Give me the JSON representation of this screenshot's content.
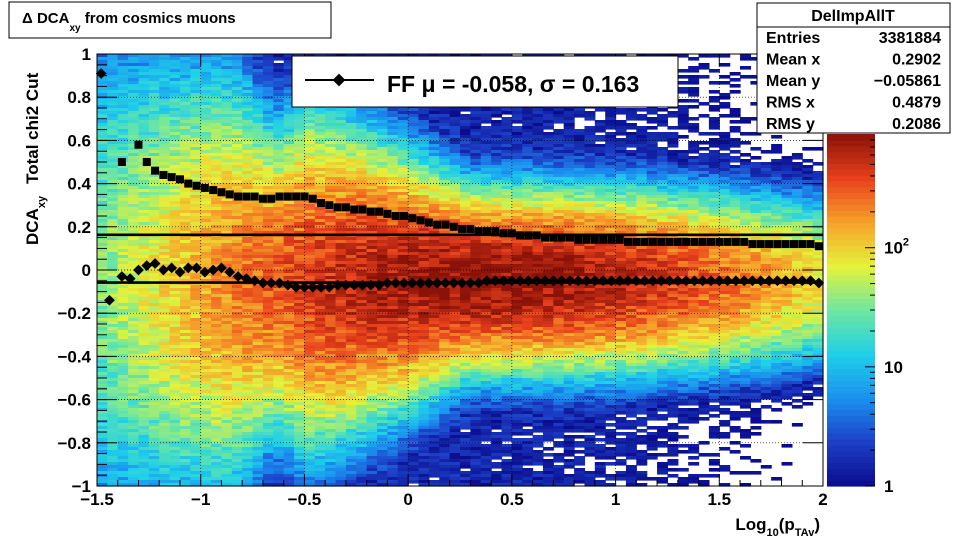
{
  "title": {
    "prefix": "Δ DCA",
    "sub": "xy",
    "suffix": " from cosmics muons"
  },
  "stats": {
    "name": "DelImpAllT",
    "rows": [
      {
        "label": "Entries",
        "value": "3381884"
      },
      {
        "label": "Mean x",
        "value": "0.2902"
      },
      {
        "label": "Mean y",
        "value": "−0.05861"
      },
      {
        "label": "RMS x",
        "value": "0.4879"
      },
      {
        "label": "RMS y",
        "value": "0.2086"
      }
    ]
  },
  "legend": {
    "text": "FF μ = -0.058, σ =   0.163"
  },
  "colors": {
    "frame": "#000000",
    "grid": "#000000",
    "marker": "#000000",
    "background": "#ffffff"
  },
  "chart_data": {
    "type": "heatmap",
    "xlabel": {
      "main": "Log",
      "sub1": "10",
      "mid": "(p",
      "sub2": "TAv",
      "end": ")"
    },
    "ylabel": {
      "main": "DCA",
      "sub": "xy",
      "extra": "Total chi2 Cut"
    },
    "xlim": [
      -1.5,
      2
    ],
    "ylim": [
      -1,
      1
    ],
    "grid": true,
    "legend_position": "top-center",
    "x_ticks": [
      {
        "value": -1.5,
        "label": "−1.5"
      },
      {
        "value": -1,
        "label": "−1"
      },
      {
        "value": -0.5,
        "label": "−0.5"
      },
      {
        "value": 0,
        "label": "0"
      },
      {
        "value": 0.5,
        "label": "0.5"
      },
      {
        "value": 1,
        "label": "1"
      },
      {
        "value": 1.5,
        "label": "1.5"
      },
      {
        "value": 2,
        "label": "2"
      }
    ],
    "y_ticks": [
      {
        "value": -1,
        "label": "−1"
      },
      {
        "value": -0.8,
        "label": "−0.8"
      },
      {
        "value": -0.6,
        "label": "−0.6"
      },
      {
        "value": -0.4,
        "label": "−0.4"
      },
      {
        "value": -0.2,
        "label": "−0.2"
      },
      {
        "value": 0,
        "label": "0"
      },
      {
        "value": 0.2,
        "label": "0.2"
      },
      {
        "value": 0.4,
        "label": "0.4"
      },
      {
        "value": 0.6,
        "label": "0.6"
      },
      {
        "value": 0.8,
        "label": "0.8"
      },
      {
        "value": 1,
        "label": "1"
      }
    ],
    "colorbar": {
      "scale": "log",
      "range": [
        1,
        900
      ],
      "labels": [
        {
          "value": 1,
          "base": "1",
          "exp": ""
        },
        {
          "value": 10,
          "base": "10",
          "exp": ""
        },
        {
          "value": 100,
          "base": "10",
          "exp": "2"
        }
      ]
    },
    "mean_y": 0.01,
    "palette": [
      "#0a0a8c",
      "#1c3fc6",
      "#1b90f0",
      "#1fd0e8",
      "#6fe7a0",
      "#e6f23a",
      "#f6a12a",
      "#e8401c",
      "#8a1208"
    ],
    "density": {
      "peak_x": 0.4,
      "peak_y": -0.05,
      "max_counts": 900
    },
    "series": [
      {
        "name": "mean",
        "x": [
          -1.48,
          -1.44,
          -1.38,
          -1.34,
          -1.3,
          -1.26,
          -1.22,
          -1.18,
          -1.14,
          -1.1,
          -1.06,
          -1.02,
          -0.98,
          -0.94,
          -0.9,
          -0.86,
          -0.82,
          -0.78,
          -0.74,
          -0.7,
          -0.66,
          -0.62,
          -0.58,
          -0.54,
          -0.5,
          -0.46,
          -0.42,
          -0.38,
          -0.34,
          -0.3,
          -0.26,
          -0.22,
          -0.18,
          -0.14,
          -0.1,
          -0.06,
          -0.02,
          0.02,
          0.06,
          0.1,
          0.14,
          0.18,
          0.22,
          0.26,
          0.3,
          0.34,
          0.38,
          0.42,
          0.46,
          0.5,
          0.54,
          0.58,
          0.62,
          0.66,
          0.7,
          0.74,
          0.78,
          0.82,
          0.86,
          0.9,
          0.94,
          0.98,
          1.02,
          1.06,
          1.1,
          1.14,
          1.18,
          1.22,
          1.26,
          1.3,
          1.34,
          1.38,
          1.42,
          1.46,
          1.5,
          1.54,
          1.58,
          1.62,
          1.66,
          1.7,
          1.74,
          1.78,
          1.82,
          1.86,
          1.9,
          1.94,
          1.98
        ],
        "y": [
          0.91,
          -0.14,
          -0.03,
          -0.04,
          0.0,
          0.02,
          0.03,
          0.0,
          0.01,
          -0.01,
          0.01,
          0.01,
          -0.01,
          0.0,
          0.01,
          -0.01,
          -0.03,
          -0.04,
          -0.05,
          -0.06,
          -0.06,
          -0.06,
          -0.07,
          -0.08,
          -0.08,
          -0.08,
          -0.08,
          -0.08,
          -0.07,
          -0.07,
          -0.07,
          -0.07,
          -0.07,
          -0.07,
          -0.06,
          -0.06,
          -0.06,
          -0.06,
          -0.06,
          -0.06,
          -0.06,
          -0.06,
          -0.06,
          -0.06,
          -0.06,
          -0.06,
          -0.05,
          -0.05,
          -0.05,
          -0.05,
          -0.05,
          -0.05,
          -0.05,
          -0.05,
          -0.05,
          -0.05,
          -0.05,
          -0.05,
          -0.05,
          -0.05,
          -0.05,
          -0.05,
          -0.05,
          -0.05,
          -0.05,
          -0.05,
          -0.05,
          -0.05,
          -0.05,
          -0.05,
          -0.05,
          -0.05,
          -0.05,
          -0.05,
          -0.05,
          -0.05,
          -0.05,
          -0.05,
          -0.05,
          -0.05,
          -0.05,
          -0.05,
          -0.05,
          -0.05,
          -0.05,
          -0.05,
          -0.06
        ]
      },
      {
        "name": "sigma",
        "x": [
          -1.38,
          -1.3,
          -1.26,
          -1.22,
          -1.18,
          -1.14,
          -1.1,
          -1.06,
          -1.02,
          -0.98,
          -0.94,
          -0.9,
          -0.86,
          -0.82,
          -0.78,
          -0.74,
          -0.7,
          -0.66,
          -0.62,
          -0.58,
          -0.54,
          -0.5,
          -0.46,
          -0.42,
          -0.38,
          -0.34,
          -0.3,
          -0.26,
          -0.22,
          -0.18,
          -0.14,
          -0.1,
          -0.06,
          -0.02,
          0.02,
          0.06,
          0.1,
          0.14,
          0.18,
          0.22,
          0.26,
          0.3,
          0.34,
          0.38,
          0.42,
          0.46,
          0.5,
          0.54,
          0.58,
          0.62,
          0.66,
          0.7,
          0.74,
          0.78,
          0.82,
          0.86,
          0.9,
          0.94,
          0.98,
          1.02,
          1.06,
          1.1,
          1.14,
          1.18,
          1.22,
          1.26,
          1.3,
          1.34,
          1.38,
          1.42,
          1.46,
          1.5,
          1.54,
          1.58,
          1.62,
          1.66,
          1.7,
          1.74,
          1.78,
          1.82,
          1.86,
          1.9,
          1.94,
          1.98
        ],
        "y": [
          0.5,
          0.58,
          0.5,
          0.46,
          0.44,
          0.43,
          0.42,
          0.4,
          0.39,
          0.38,
          0.37,
          0.36,
          0.35,
          0.34,
          0.34,
          0.34,
          0.33,
          0.33,
          0.34,
          0.34,
          0.34,
          0.34,
          0.33,
          0.31,
          0.3,
          0.29,
          0.29,
          0.28,
          0.28,
          0.27,
          0.27,
          0.26,
          0.25,
          0.25,
          0.24,
          0.23,
          0.22,
          0.21,
          0.21,
          0.2,
          0.19,
          0.19,
          0.18,
          0.18,
          0.18,
          0.17,
          0.17,
          0.16,
          0.16,
          0.16,
          0.15,
          0.15,
          0.15,
          0.15,
          0.14,
          0.14,
          0.14,
          0.14,
          0.14,
          0.14,
          0.13,
          0.13,
          0.13,
          0.13,
          0.13,
          0.13,
          0.13,
          0.13,
          0.13,
          0.13,
          0.13,
          0.13,
          0.13,
          0.13,
          0.13,
          0.12,
          0.12,
          0.12,
          0.12,
          0.12,
          0.12,
          0.12,
          0.12,
          0.11
        ]
      }
    ],
    "ref_lines": [
      {
        "name": "mu",
        "y": -0.058
      },
      {
        "name": "sigma",
        "y": 0.163
      }
    ]
  }
}
